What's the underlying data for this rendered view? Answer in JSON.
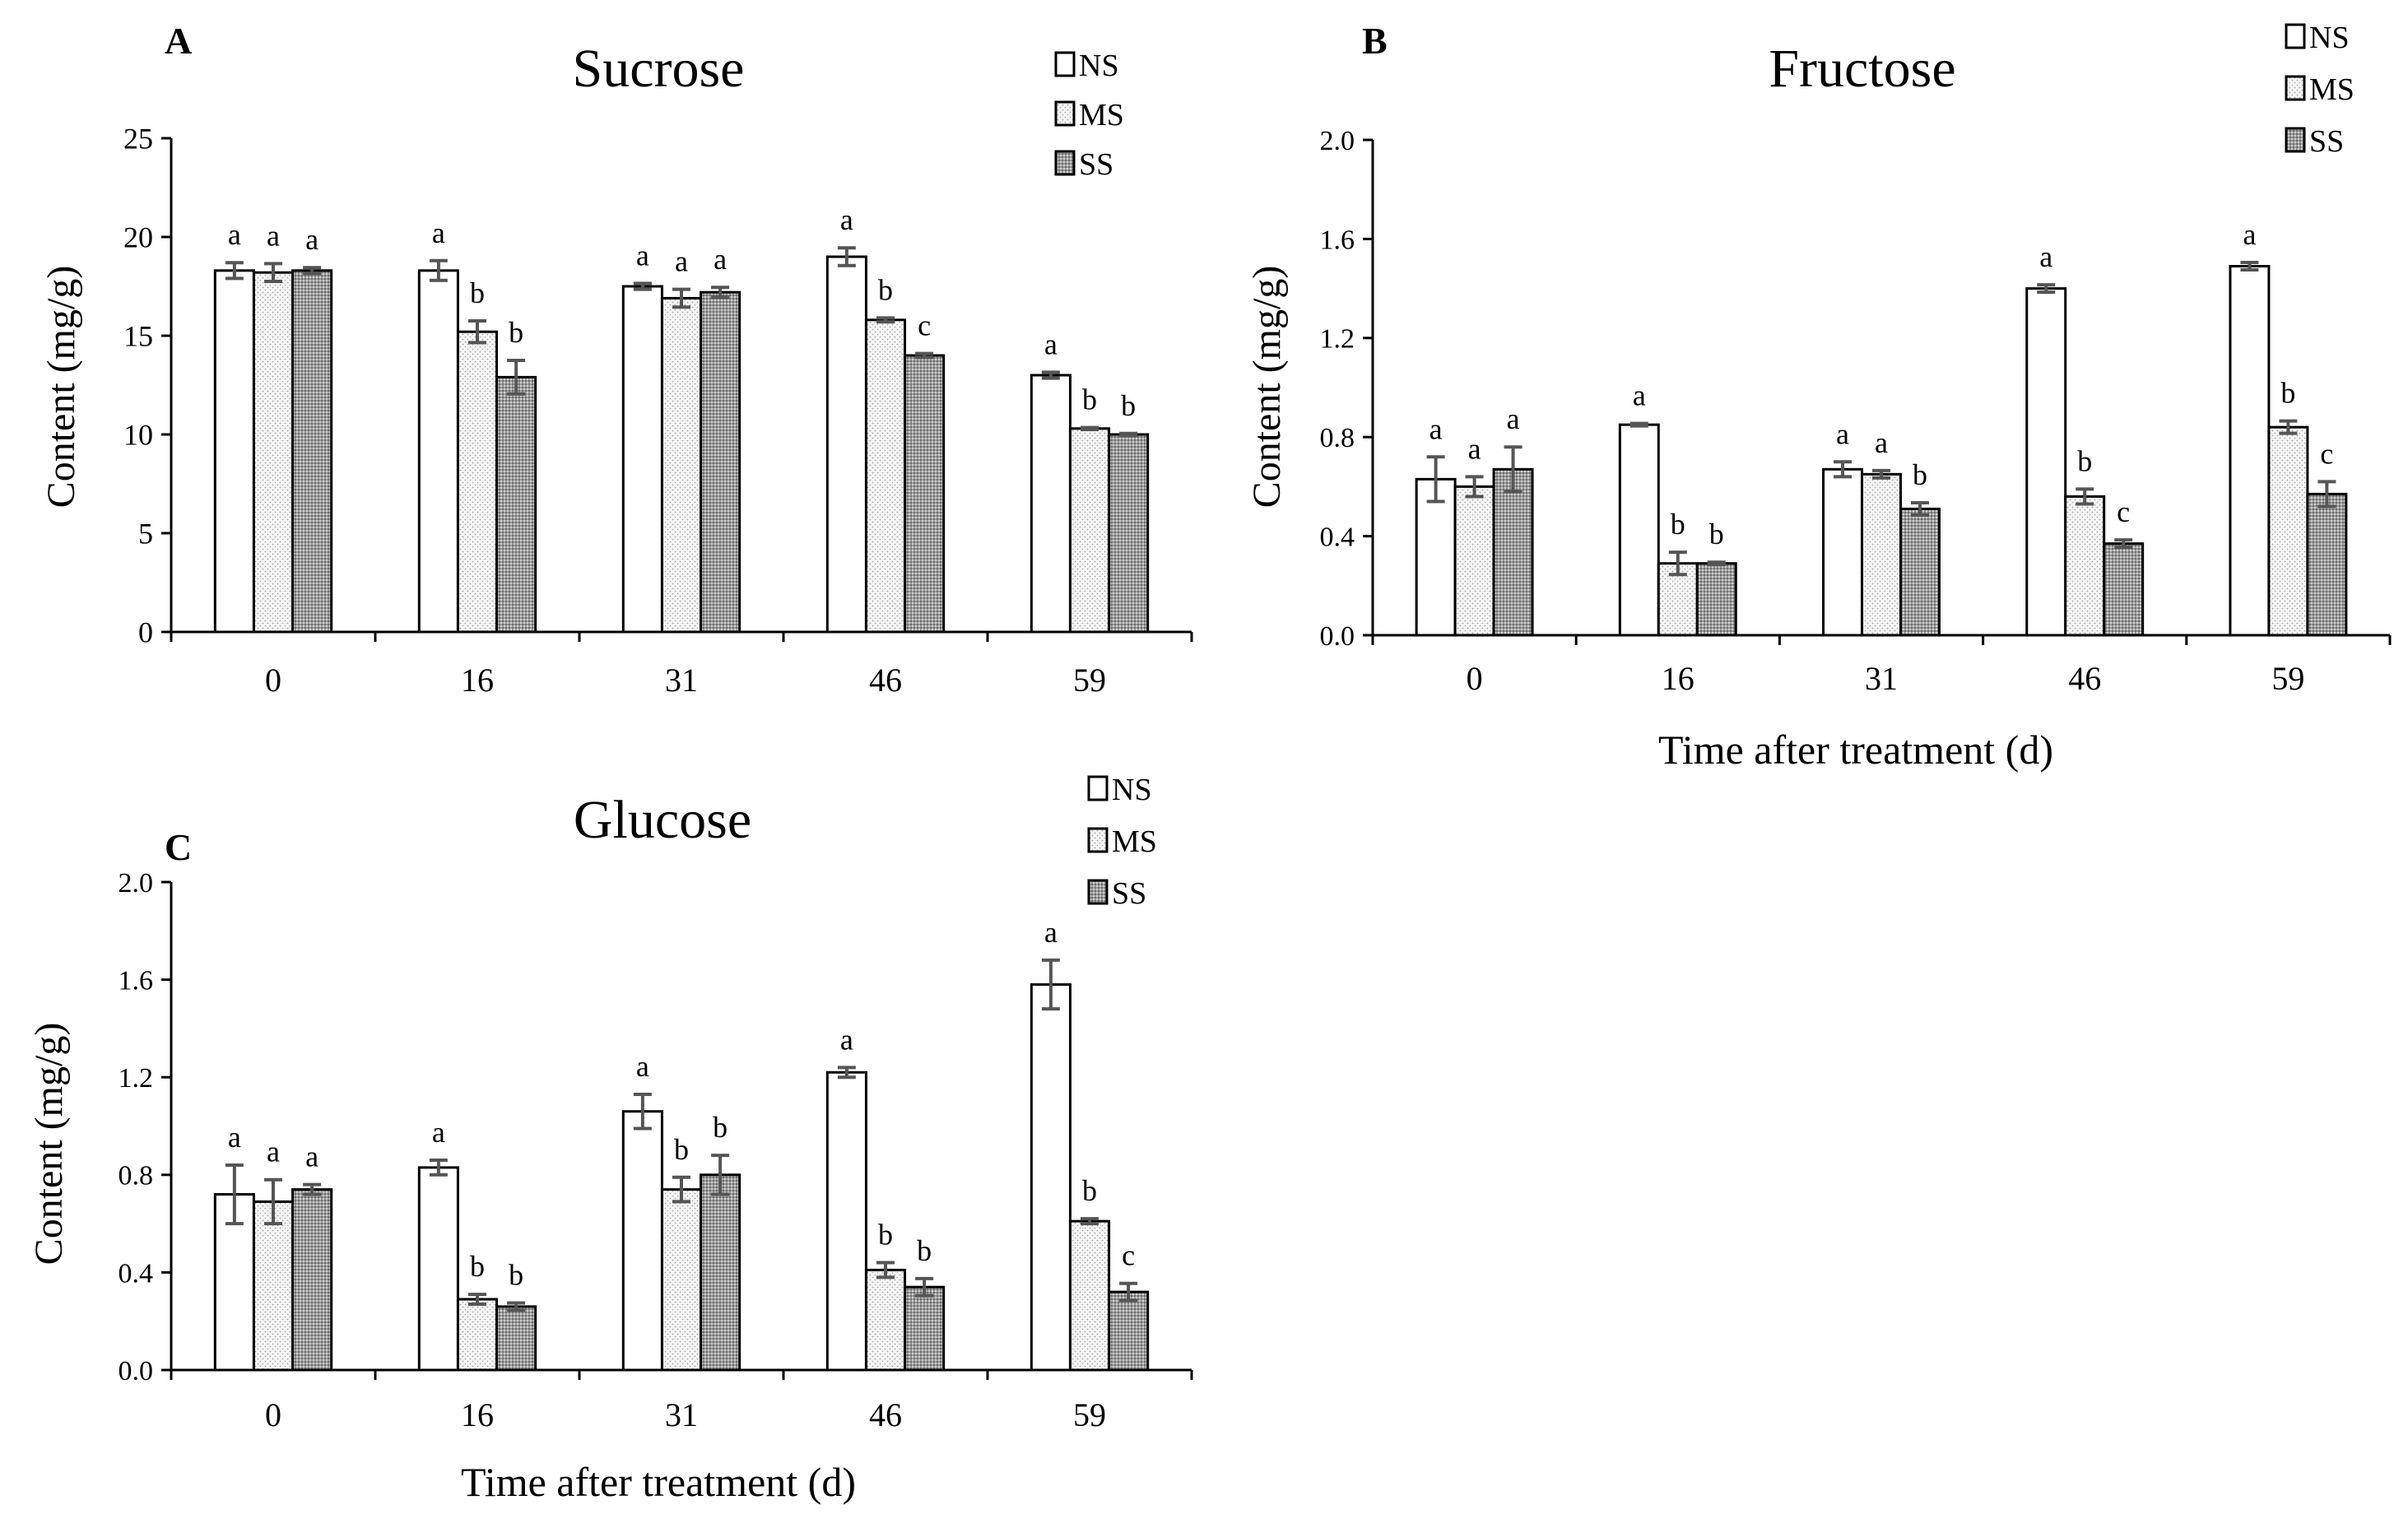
{
  "legend_items": [
    "NS",
    "MS",
    "SS"
  ],
  "colors": {
    "NS": "#ffffff",
    "MS": "#f2f2f2",
    "SS": "#9a9a9a",
    "stroke": "#000000",
    "error": "#555555"
  },
  "chart_data": [
    {
      "panel": "A",
      "type": "bar",
      "title": "Sucrose",
      "xlabel": "",
      "ylabel": "Content (mg/g)",
      "categories": [
        "0",
        "16",
        "31",
        "46",
        "59"
      ],
      "ylim": [
        0,
        25
      ],
      "yticks": [
        "0",
        "5",
        "10",
        "15",
        "20",
        "25"
      ],
      "grid": false,
      "legend": "top-right",
      "series": [
        {
          "name": "NS",
          "values": [
            18.3,
            18.3,
            17.5,
            19.0,
            13.0
          ],
          "errors": [
            0.4,
            0.5,
            0.15,
            0.45,
            0.15
          ],
          "labels": [
            "a",
            "a",
            "a",
            "a",
            "a"
          ]
        },
        {
          "name": "MS",
          "values": [
            18.2,
            15.2,
            16.9,
            15.8,
            10.3
          ],
          "errors": [
            0.45,
            0.55,
            0.45,
            0.1,
            0.05
          ],
          "labels": [
            "a",
            "b",
            "a",
            "b",
            "b"
          ]
        },
        {
          "name": "SS",
          "values": [
            18.3,
            12.9,
            17.2,
            14.0,
            10.0
          ],
          "errors": [
            0.15,
            0.85,
            0.25,
            0.1,
            0.05
          ],
          "labels": [
            "a",
            "b",
            "a",
            "c",
            "b"
          ]
        }
      ]
    },
    {
      "panel": "B",
      "type": "bar",
      "title": "Fructose",
      "xlabel": "Time after treatment (d)",
      "ylabel": "Content (mg/g)",
      "categories": [
        "0",
        "16",
        "31",
        "46",
        "59"
      ],
      "ylim": [
        0,
        2.0
      ],
      "yticks": [
        "0.0",
        "0.4",
        "0.8",
        "1.2",
        "1.6",
        "2.0"
      ],
      "grid": false,
      "legend": "top-right",
      "series": [
        {
          "name": "NS",
          "values": [
            0.63,
            0.85,
            0.67,
            1.4,
            1.49
          ],
          "errors": [
            0.09,
            0.005,
            0.03,
            0.015,
            0.015
          ],
          "labels": [
            "a",
            "a",
            "a",
            "a",
            "a"
          ]
        },
        {
          "name": "MS",
          "values": [
            0.6,
            0.29,
            0.65,
            0.56,
            0.84
          ],
          "errors": [
            0.04,
            0.045,
            0.015,
            0.03,
            0.025
          ],
          "labels": [
            "a",
            "b",
            "a",
            "b",
            "b"
          ]
        },
        {
          "name": "SS",
          "values": [
            0.67,
            0.29,
            0.51,
            0.37,
            0.57
          ],
          "errors": [
            0.09,
            0.005,
            0.025,
            0.015,
            0.05
          ],
          "labels": [
            "a",
            "b",
            "b",
            "c",
            "c"
          ]
        }
      ]
    },
    {
      "panel": "C",
      "type": "bar",
      "title": "Glucose",
      "xlabel": "Time after treatment (d)",
      "ylabel": "Content (mg/g)",
      "categories": [
        "0",
        "16",
        "31",
        "46",
        "59"
      ],
      "ylim": [
        0,
        2.0
      ],
      "yticks": [
        "0.0",
        "0.4",
        "0.8",
        "1.2",
        "1.6",
        "2.0"
      ],
      "grid": false,
      "legend": "top-right",
      "series": [
        {
          "name": "NS",
          "values": [
            0.72,
            0.83,
            1.06,
            1.22,
            1.58
          ],
          "errors": [
            0.12,
            0.03,
            0.07,
            0.02,
            0.1
          ],
          "labels": [
            "a",
            "a",
            "a",
            "a",
            "a"
          ]
        },
        {
          "name": "MS",
          "values": [
            0.69,
            0.29,
            0.74,
            0.41,
            0.61
          ],
          "errors": [
            0.09,
            0.02,
            0.05,
            0.03,
            0.01
          ],
          "labels": [
            "a",
            "b",
            "b",
            "b",
            "b"
          ]
        },
        {
          "name": "SS",
          "values": [
            0.74,
            0.26,
            0.8,
            0.34,
            0.32
          ],
          "errors": [
            0.02,
            0.015,
            0.08,
            0.035,
            0.035
          ],
          "labels": [
            "a",
            "b",
            "b",
            "b",
            "c"
          ]
        }
      ]
    }
  ]
}
